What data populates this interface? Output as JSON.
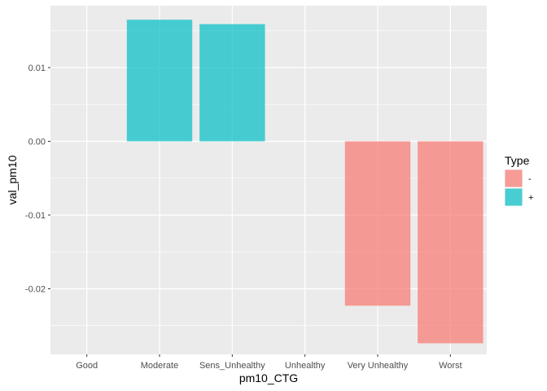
{
  "chart_data": {
    "type": "bar",
    "title": "",
    "xlabel": "pm10_CTG",
    "ylabel": "val_pm10",
    "categories": [
      "Good",
      "Moderate",
      "Sens_Unhealthy",
      "Unhealthy",
      "Very Unhealthy",
      "Worst"
    ],
    "values": [
      null,
      0.0165,
      0.0159,
      null,
      -0.0223,
      -0.0274
    ],
    "bar_type": [
      null,
      "+",
      "+",
      null,
      "-",
      "-"
    ],
    "ylim": [
      -0.0289,
      0.0184
    ],
    "y_ticks": [
      -0.02,
      -0.01,
      0.0,
      0.01
    ],
    "y_tick_labels": [
      "-0.02",
      "-0.01",
      "0.00",
      "0.01"
    ],
    "grid": true,
    "legend": {
      "title": "Type",
      "placement": "right",
      "entries": [
        {
          "label": "-",
          "color": "#F8766D"
        },
        {
          "label": "+",
          "color": "#00BFC4"
        }
      ]
    },
    "colors": {
      "panel_bg": "#EBEBEB",
      "grid_major": "#FFFFFF",
      "neg": "#F8766D",
      "pos": "#00BFC4"
    }
  }
}
